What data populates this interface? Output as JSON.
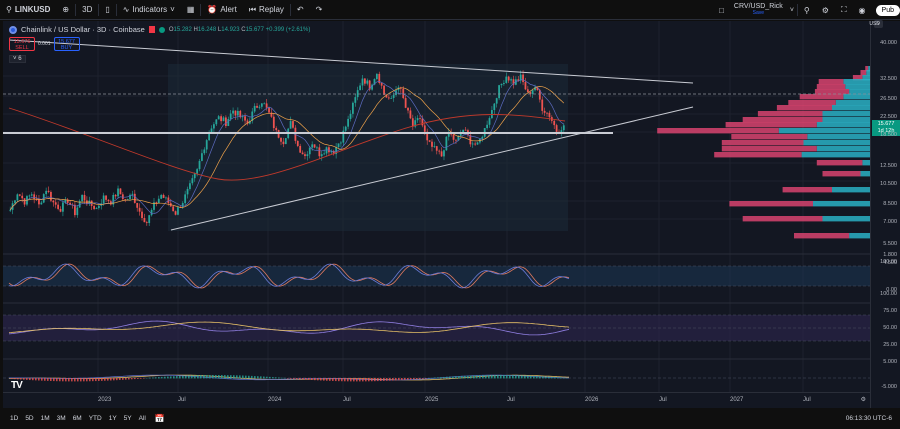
{
  "topbar": {
    "symbol": "LINKUSD",
    "interval": "3D",
    "indicators_label": "Indicators",
    "alert_label": "Alert",
    "replay_label": "Replay",
    "layout_name": "CRV/USD_Rick",
    "layout_status": "Save",
    "publish_label": "Pub"
  },
  "legend": {
    "title": "Chainlink / US Dollar · 3D · Coinbase",
    "open_label": "O",
    "open": "15.282",
    "high_label": "H",
    "high": "16.248",
    "low_label": "L",
    "low": "14.923",
    "close_label": "C",
    "close": "15.677",
    "change": "+0.399 (+2.61%)"
  },
  "trade": {
    "sell_price": "15.676",
    "sell_label": "SELL",
    "spread": "0.001",
    "buy_price": "15.677",
    "buy_label": "BUY",
    "indicators_collapsed_count": "6"
  },
  "price_scale": {
    "currency": "USD",
    "labels": [
      "40.000",
      "32.500",
      "26.500",
      "22.500",
      "18.500",
      "12.500",
      "10.500",
      "8.500",
      "7.000",
      "5.500",
      "4.500"
    ],
    "current_price": "15.677",
    "countdown": "1d 12h",
    "stoch_labels": [
      "1.800",
      "100.00",
      "0.00",
      "100.00"
    ],
    "rsi_labels": [
      "75.00",
      "50.00",
      "25.00"
    ],
    "macd_labels": [
      "5.000",
      "-5.000"
    ]
  },
  "time_axis": {
    "labels": [
      "2023",
      "Jul",
      "2024",
      "Jul",
      "2025",
      "Jul",
      "2026",
      "Jul",
      "2027",
      "Jul"
    ]
  },
  "bottombar": {
    "ranges": [
      "1D",
      "5D",
      "1M",
      "3M",
      "6M",
      "YTD",
      "1Y",
      "5Y",
      "All"
    ],
    "clock": "06:13:30 UTC-6"
  },
  "colors": {
    "up": "#26a69a",
    "down": "#ef5350",
    "background": "#131722",
    "volume_profile_up": "#2ab0c4",
    "volume_profile_down": "#d8436e"
  },
  "chart_data": {
    "type": "candlestick",
    "title": "Chainlink / US Dollar · 3D · Coinbase",
    "symbol": "LINKUSD",
    "timeframe": "3D",
    "x_ticks": [
      "2023",
      "Jul",
      "2024",
      "Jul",
      "2025",
      "Jul",
      "2026",
      "Jul",
      "2027",
      "Jul"
    ],
    "y_ticks": [
      40.0,
      32.5,
      26.5,
      22.5,
      18.5,
      12.5,
      10.5,
      8.5,
      7.0,
      5.5,
      4.5
    ],
    "price_path": [
      6.2,
      7.5,
      6.8,
      7.4,
      6.5,
      7.8,
      6.7,
      6.3,
      6.9,
      6.0,
      7.2,
      6.6,
      6.3,
      7.1,
      6.8,
      7.6,
      6.9,
      7.3,
      6.1,
      5.4,
      6.5,
      7.3,
      6.7,
      6.0,
      6.8,
      8.0,
      9.5,
      12.5,
      15.5,
      17.0,
      16.2,
      18.5,
      17.2,
      16.0,
      18.8,
      20.5,
      17.8,
      14.5,
      13.2,
      16.0,
      12.5,
      11.2,
      13.0,
      11.5,
      12.2,
      11.8,
      13.5,
      16.5,
      21.0,
      26.5,
      24.0,
      28.0,
      22.0,
      20.5,
      24.5,
      19.0,
      15.5,
      17.0,
      13.0,
      12.0,
      11.2,
      14.5,
      13.0,
      15.0,
      13.2,
      12.5,
      15.0,
      18.5,
      23.5,
      27.0,
      25.0,
      26.5,
      22.0,
      24.0,
      19.0,
      17.5,
      14.8,
      15.677
    ],
    "trendlines": [
      {
        "name": "descending resistance",
        "from_price": 40.0,
        "to_price": 25.5
      },
      {
        "name": "ascending support",
        "from_price": 5.4,
        "to_price": 19.5
      },
      {
        "name": "horizontal level",
        "price": 14.9
      }
    ],
    "dashed_level": 22.5,
    "indicators": [
      "Stochastic RSI",
      "RSI",
      "MACD",
      "Moving averages (20/50/200)",
      "Volume profile"
    ],
    "rsi_bands": [
      75,
      50,
      25
    ]
  }
}
